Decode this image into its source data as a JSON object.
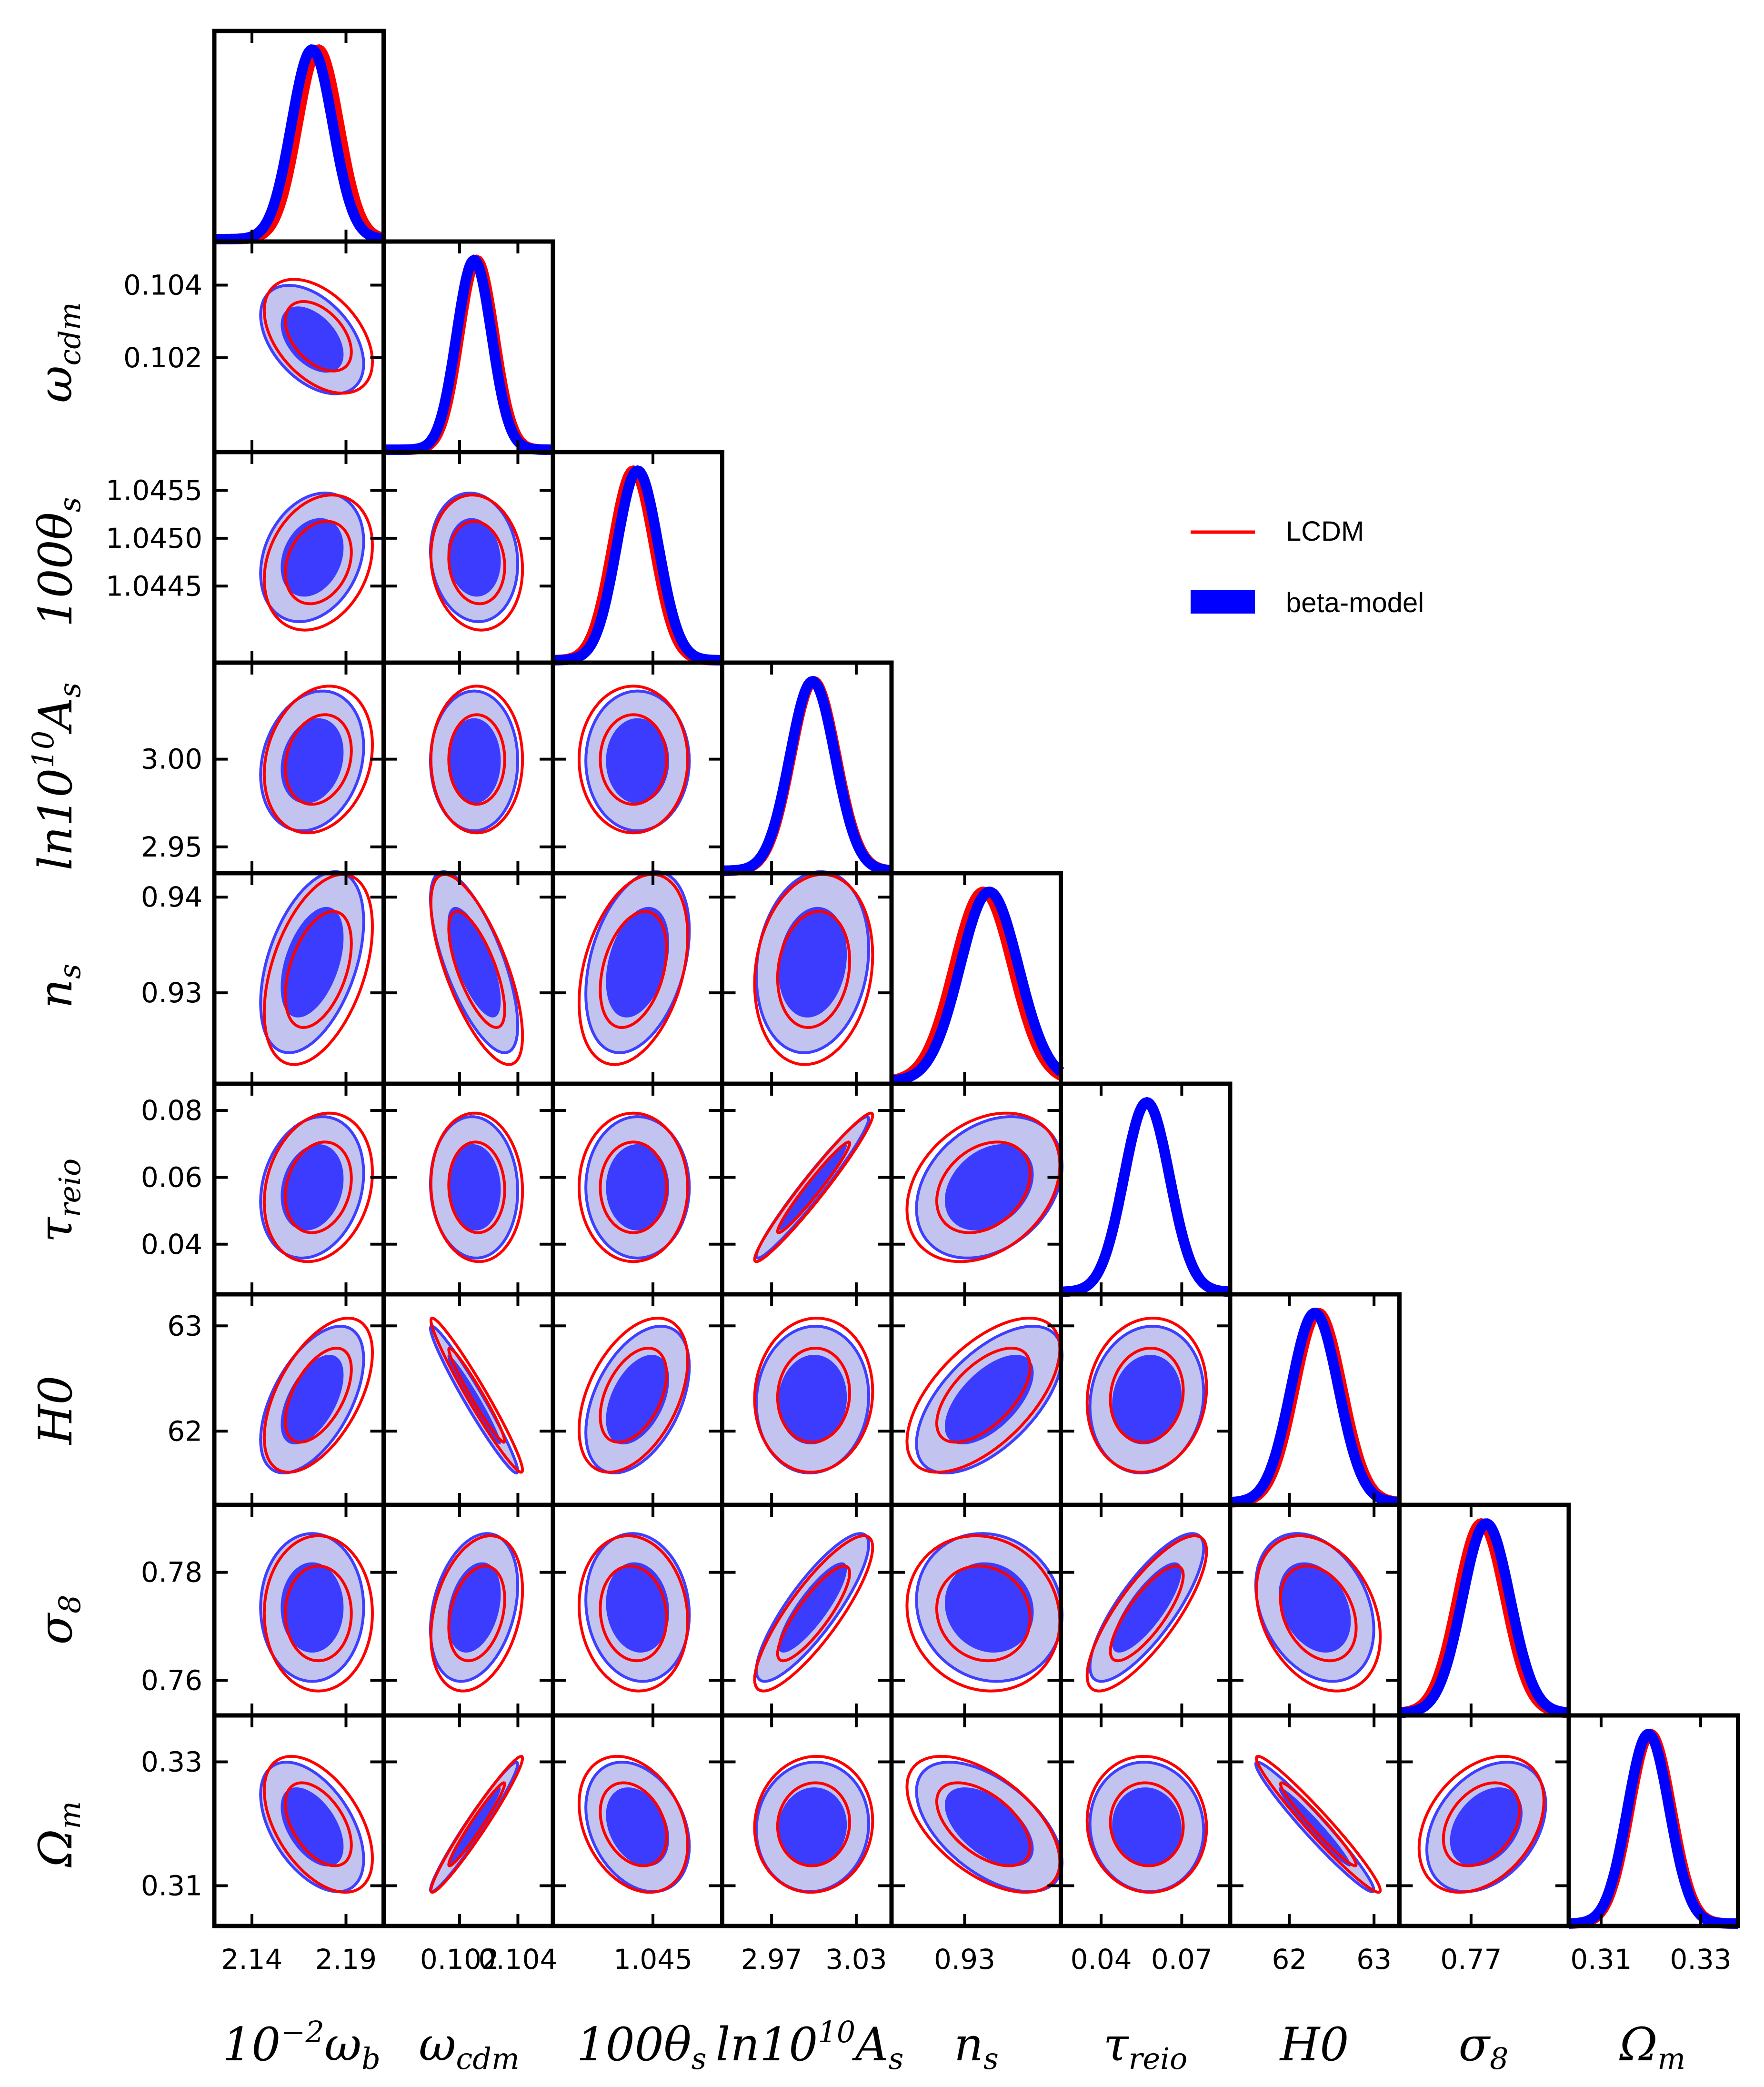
{
  "chart_data": {
    "type": "triangle",
    "params": [
      {
        "label": "10⁻²ω_b",
        "mean": 2.172,
        "sd": 0.011,
        "lo": 2.12,
        "hi": 2.21,
        "ticks": [
          2.14,
          2.19
        ],
        "ticklabels": [
          "2.14",
          "2.19"
        ]
      },
      {
        "label": "ω_cdm",
        "mean": 0.1025,
        "sd": 0.0006,
        "lo": 0.0994,
        "hi": 0.1052,
        "ticks": [
          0.102,
          0.104
        ],
        "ticklabels": [
          "0.102",
          "0.104"
        ]
      },
      {
        "label": "100θ_s",
        "mean": 1.0448,
        "sd": 0.00027,
        "lo": 1.0437,
        "hi": 1.0459,
        "ticks": [
          1.0445,
          1.045,
          1.0455
        ],
        "ticklabels": [
          "1.0445",
          "1.0450",
          "1.0455"
        ],
        "bottomticks": [
          1.045
        ],
        "bottomlabels": [
          "1.045"
        ]
      },
      {
        "label": "ln10¹⁰A_s",
        "mean": 2.999,
        "sd": 0.016,
        "lo": 2.935,
        "hi": 3.055,
        "ticks": [
          2.95,
          3.0
        ],
        "ticklabels": [
          "2.95",
          "3.00"
        ],
        "bottomticks": [
          2.97,
          3.03
        ],
        "bottomlabels": [
          "2.97",
          "3.03"
        ]
      },
      {
        "label": "n_s",
        "mean": 0.9332,
        "sd": 0.0038,
        "lo": 0.9205,
        "hi": 0.9425,
        "ticks": [
          0.93,
          0.94
        ],
        "ticklabels": [
          "0.93",
          "0.94"
        ],
        "bottomticks": [
          0.93
        ],
        "bottomlabels": [
          "0.93"
        ]
      },
      {
        "label": "τ_reio",
        "mean": 0.057,
        "sd": 0.0085,
        "lo": 0.025,
        "hi": 0.088,
        "ticks": [
          0.04,
          0.06,
          0.08
        ],
        "ticklabels": [
          "0.04",
          "0.06",
          "0.08"
        ],
        "bottomticks": [
          0.04,
          0.07
        ],
        "bottomlabels": [
          "0.04",
          "0.07"
        ]
      },
      {
        "label": "H0",
        "mean": 62.3,
        "sd": 0.28,
        "lo": 61.3,
        "hi": 63.3,
        "ticks": [
          62,
          63
        ],
        "ticklabels": [
          "62",
          "63"
        ]
      },
      {
        "label": "σ_8",
        "mean": 0.7735,
        "sd": 0.0055,
        "lo": 0.7535,
        "hi": 0.7925,
        "ticks": [
          0.76,
          0.78
        ],
        "ticklabels": [
          "0.76",
          "0.78"
        ],
        "bottomticks": [
          0.77
        ],
        "bottomlabels": [
          "0.77"
        ]
      },
      {
        "label": "Ω_m",
        "mean": 0.3195,
        "sd": 0.0042,
        "lo": 0.3035,
        "hi": 0.3375,
        "ticks": [
          0.31,
          0.33
        ],
        "ticklabels": [
          "0.31",
          "0.33"
        ]
      }
    ],
    "correlations": {
      "0,1": -0.45,
      "0,2": 0.25,
      "0,3": 0.2,
      "0,4": 0.45,
      "0,5": 0.2,
      "0,6": 0.55,
      "0,7": 0.0,
      "0,8": -0.5,
      "1,2": -0.1,
      "1,3": 0.0,
      "1,4": -0.7,
      "1,5": -0.05,
      "1,6": -0.97,
      "1,7": 0.3,
      "1,8": 0.97,
      "2,3": 0.0,
      "2,4": 0.35,
      "2,5": 0.0,
      "2,6": 0.45,
      "2,7": -0.1,
      "2,8": -0.3,
      "3,4": 0.15,
      "3,5": 0.97,
      "3,6": 0.05,
      "3,7": 0.85,
      "3,8": 0.05,
      "4,5": 0.3,
      "4,6": 0.6,
      "4,7": -0.1,
      "4,8": -0.55,
      "5,6": 0.1,
      "5,7": 0.8,
      "5,8": -0.05,
      "6,7": -0.3,
      "6,8": -0.97,
      "7,8": 0.35
    },
    "series": [
      {
        "name": "LCDM",
        "color": "#ff0000",
        "style": "line",
        "shifts": [
          0.3,
          0.15,
          -0.2,
          0.05,
          -0.2,
          0.0,
          0.15,
          -0.2,
          0.1
        ]
      },
      {
        "name": "beta-model",
        "color": "#0000ff",
        "style": "filled",
        "fill_inner": "#3c3cff",
        "fill_outer": "#c3c3ef",
        "shifts": [
          0,
          0,
          0,
          0,
          0,
          0,
          0,
          0,
          0
        ]
      }
    ],
    "legend_position": "upper-right"
  }
}
